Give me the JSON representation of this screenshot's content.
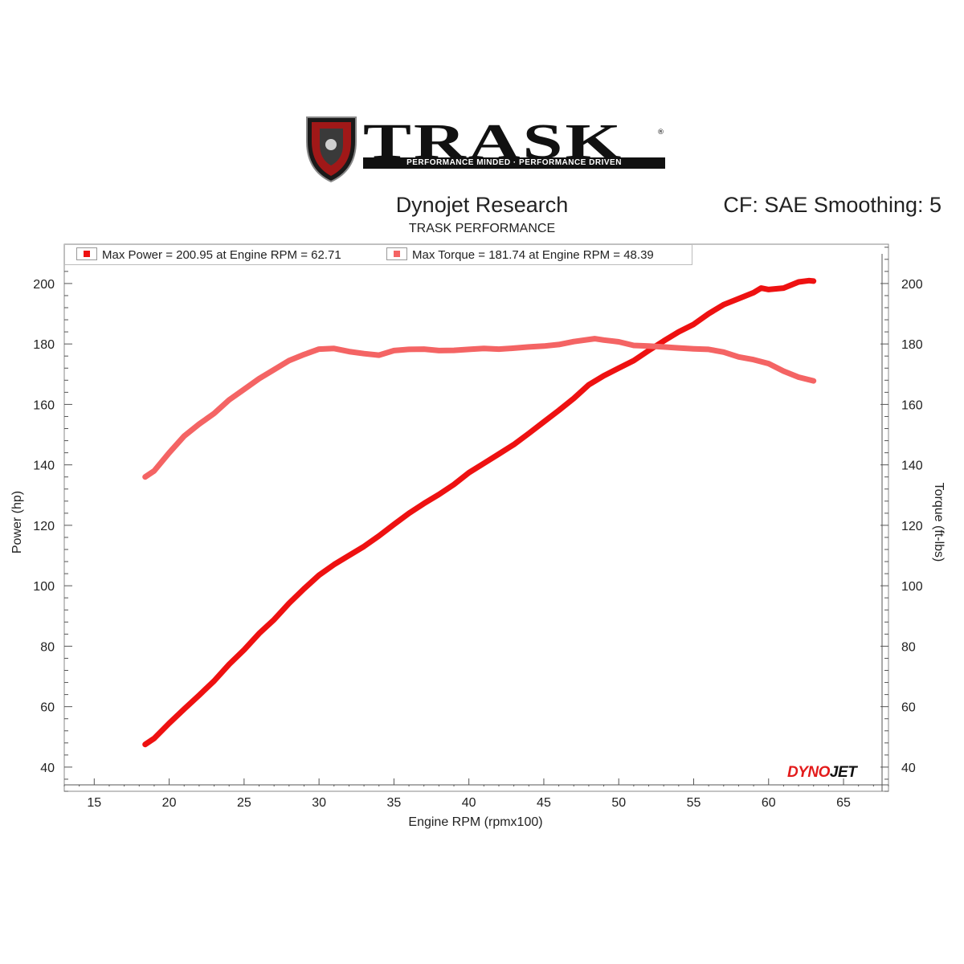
{
  "brand": {
    "name": "TRASK",
    "tagline": "PERFORMANCE MINDED · PERFORMANCE DRIVEN",
    "trademark": "®"
  },
  "header": {
    "title": "Dynojet Research",
    "subtitle": "TRASK PERFORMANCE",
    "correction": "CF: SAE Smoothing: 5"
  },
  "legend": {
    "power": "Max Power = 200.95 at Engine RPM = 62.71",
    "torque": "Max Torque = 181.74 at Engine RPM = 48.39"
  },
  "watermark": {
    "part1": "DYNO",
    "part2": "JET"
  },
  "colors": {
    "power": "#ee1111",
    "torque": "#f46464",
    "grid": "#9a9a9a"
  },
  "chart_data": {
    "type": "line",
    "xlabel": "Engine RPM (rpmx100)",
    "ylabel": "Power (hp)",
    "y2label": "Torque (ft-lbs)",
    "xlim": [
      13,
      68
    ],
    "ylim": [
      32,
      213
    ],
    "y2lim": [
      32,
      213
    ],
    "xticks": [
      15,
      20,
      25,
      30,
      35,
      40,
      45,
      50,
      55,
      60,
      65
    ],
    "yticks": [
      40,
      60,
      80,
      100,
      120,
      140,
      160,
      180,
      200
    ],
    "y2ticks": [
      40,
      60,
      80,
      100,
      120,
      140,
      160,
      180,
      200
    ],
    "grid": true,
    "legend_position": "top-left",
    "series": [
      {
        "name": "Max Power = 200.95 at Engine RPM = 62.71",
        "axis": "left",
        "x": [
          18.4,
          19.0,
          20.0,
          21.0,
          22.0,
          23.0,
          24.0,
          25.0,
          26.0,
          27.0,
          28.0,
          29.0,
          30.0,
          31.0,
          32.0,
          33.0,
          34.0,
          35.0,
          36.0,
          37.0,
          38.0,
          39.0,
          40.0,
          41.0,
          42.0,
          43.0,
          44.0,
          45.0,
          46.0,
          47.0,
          48.0,
          49.0,
          50.0,
          51.0,
          52.0,
          53.0,
          54.0,
          55.0,
          56.0,
          57.0,
          58.0,
          59.0,
          59.5,
          60.0,
          61.0,
          62.0,
          62.7,
          63.0
        ],
        "values": [
          47.5,
          49.5,
          54.5,
          59.2,
          63.8,
          68.5,
          74.0,
          78.8,
          84.2,
          88.8,
          94.2,
          99.0,
          103.5,
          107.0,
          110.0,
          113.0,
          116.5,
          120.3,
          124.0,
          127.2,
          130.2,
          133.5,
          137.4,
          140.5,
          143.6,
          146.7,
          150.4,
          154.2,
          158.0,
          162.0,
          166.5,
          169.5,
          172.0,
          174.5,
          177.8,
          181.0,
          184.0,
          186.5,
          190.0,
          193.0,
          195.0,
          197.0,
          198.5,
          198.0,
          198.5,
          200.5,
          200.95,
          200.8
        ]
      },
      {
        "name": "Max Torque = 181.74 at Engine RPM = 48.39",
        "axis": "right",
        "x": [
          18.4,
          19.0,
          20.0,
          21.0,
          22.0,
          23.0,
          24.0,
          25.0,
          26.0,
          27.0,
          28.0,
          29.0,
          30.0,
          31.0,
          32.0,
          33.0,
          34.0,
          35.0,
          36.0,
          37.0,
          38.0,
          39.0,
          40.0,
          41.0,
          42.0,
          43.0,
          44.0,
          45.0,
          46.0,
          47.0,
          48.39,
          49.0,
          50.0,
          51.0,
          52.0,
          53.0,
          54.0,
          55.0,
          56.0,
          57.0,
          58.0,
          59.0,
          60.0,
          61.0,
          62.0,
          63.0
        ],
        "values": [
          136.0,
          138.0,
          144.0,
          149.5,
          153.5,
          157.0,
          161.5,
          165.0,
          168.5,
          171.5,
          174.5,
          176.5,
          178.3,
          178.5,
          177.5,
          176.8,
          176.3,
          177.8,
          178.2,
          178.3,
          177.8,
          177.9,
          178.2,
          178.5,
          178.3,
          178.6,
          179.0,
          179.3,
          179.8,
          180.8,
          181.74,
          181.3,
          180.7,
          179.5,
          179.3,
          179.0,
          178.7,
          178.4,
          178.2,
          177.3,
          175.7,
          174.8,
          173.5,
          171.0,
          169.0,
          167.8
        ]
      }
    ]
  }
}
